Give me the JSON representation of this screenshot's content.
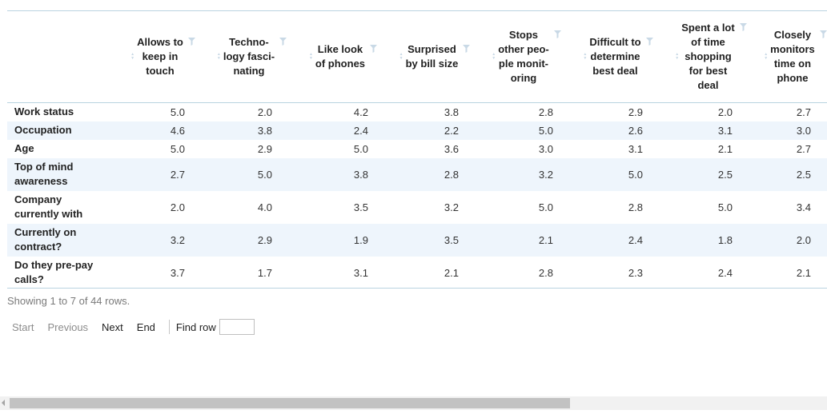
{
  "columns": [
    {
      "label": "",
      "lines": []
    },
    {
      "label": "Allows to keep in touch",
      "lines": [
        "Allows to",
        "keep in",
        "touch"
      ]
    },
    {
      "label": "Technology fascinating",
      "lines": [
        "Techno-",
        "logy fasci-",
        "nating"
      ]
    },
    {
      "label": "Like look of phones",
      "lines": [
        "Like look",
        "of phones"
      ]
    },
    {
      "label": "Surprised by bill size",
      "lines": [
        "Surprised",
        "by bill size"
      ]
    },
    {
      "label": "Stops other people monitoring",
      "lines": [
        "Stops",
        "other peo-",
        "ple monit-",
        "oring"
      ]
    },
    {
      "label": "Difficult to determine best deal",
      "lines": [
        "Difficult to",
        "determine",
        "best deal"
      ]
    },
    {
      "label": "Spent a lot of time shopping for best deal",
      "lines": [
        "Spent a lot",
        "of time",
        "shopping",
        "for best",
        "deal"
      ]
    },
    {
      "label": "Closely monitors time on phone",
      "lines": [
        "Closely",
        "monitors",
        "time on",
        "phone"
      ]
    }
  ],
  "rows": [
    {
      "name": "Work status",
      "lines": [
        "Work status"
      ],
      "values": [
        "5.0",
        "2.0",
        "4.2",
        "3.8",
        "2.8",
        "2.9",
        "2.0",
        "2.7"
      ]
    },
    {
      "name": "Occupation",
      "lines": [
        "Occupation"
      ],
      "values": [
        "4.6",
        "3.8",
        "2.4",
        "2.2",
        "5.0",
        "2.6",
        "3.1",
        "3.0"
      ]
    },
    {
      "name": "Age",
      "lines": [
        "Age"
      ],
      "values": [
        "5.0",
        "2.9",
        "5.0",
        "3.6",
        "3.0",
        "3.1",
        "2.1",
        "2.7"
      ]
    },
    {
      "name": "Top of mind awareness",
      "lines": [
        "Top of mind",
        "awareness"
      ],
      "values": [
        "2.7",
        "5.0",
        "3.8",
        "2.8",
        "3.2",
        "5.0",
        "2.5",
        "2.5"
      ]
    },
    {
      "name": "Company currently with",
      "lines": [
        "Company",
        "currently with"
      ],
      "values": [
        "2.0",
        "4.0",
        "3.5",
        "3.2",
        "5.0",
        "2.8",
        "5.0",
        "3.4"
      ]
    },
    {
      "name": "Currently on contract?",
      "lines": [
        "Currently on",
        "contract?"
      ],
      "values": [
        "3.2",
        "2.9",
        "1.9",
        "3.5",
        "2.1",
        "2.4",
        "1.8",
        "2.0"
      ]
    },
    {
      "name": "Do they pre-pay calls?",
      "lines": [
        "Do they pre-pay",
        "calls?"
      ],
      "values": [
        "3.7",
        "1.7",
        "3.1",
        "2.1",
        "2.8",
        "2.3",
        "2.4",
        "2.1"
      ]
    }
  ],
  "footer": {
    "showing_text": "Showing 1 to 7 of 44 rows."
  },
  "pager": {
    "start": "Start",
    "previous": "Previous",
    "next": "Next",
    "end": "End",
    "find_row": "Find row"
  },
  "colors": {
    "row_alt": "#eef5fc",
    "rule": "#b9d3e0",
    "icon": "#c9d9e6"
  },
  "icons": {
    "sort": "sort-icon",
    "filter": "filter-icon"
  }
}
